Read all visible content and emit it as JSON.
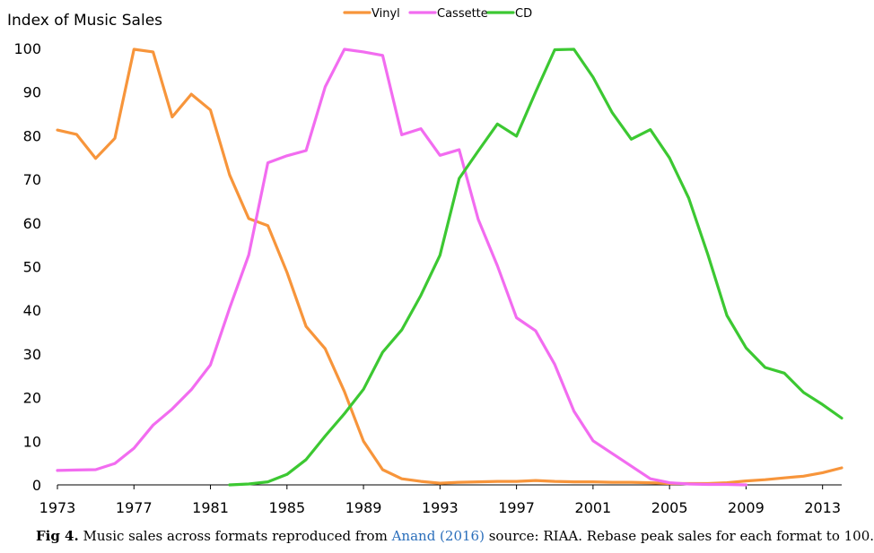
{
  "chart_data": {
    "type": "line",
    "ylabel": "Index of Music Sales",
    "ylim": [
      0,
      100
    ],
    "yticks": [
      0,
      10,
      20,
      30,
      40,
      50,
      60,
      70,
      80,
      90,
      100
    ],
    "xlim": [
      1973,
      2014
    ],
    "xticks": [
      1973,
      1977,
      1981,
      1985,
      1989,
      1993,
      1997,
      2001,
      2005,
      2009,
      2013
    ],
    "legend_position": "top-center",
    "grid": false,
    "series": [
      {
        "name": "Vinyl",
        "color": "#f7953b",
        "x": [
          1973,
          1974,
          1975,
          1976,
          1977,
          1978,
          1979,
          1980,
          1981,
          1982,
          1983,
          1984,
          1985,
          1986,
          1987,
          1988,
          1989,
          1990,
          1991,
          1992,
          1993,
          1994,
          1995,
          1996,
          1997,
          1998,
          1999,
          2000,
          2001,
          2002,
          2003,
          2004,
          2005,
          2006,
          2007,
          2008,
          2009,
          2010,
          2011,
          2012,
          2013,
          2014
        ],
        "y": [
          81.3,
          80.3,
          74.8,
          79.4,
          99.8,
          99.2,
          84.3,
          89.5,
          85.9,
          71,
          61,
          59.4,
          48.7,
          36.3,
          31.2,
          21.4,
          10,
          3.5,
          1.4,
          0.8,
          0.4,
          0.6,
          0.7,
          0.8,
          0.8,
          1,
          0.8,
          0.7,
          0.7,
          0.6,
          0.6,
          0.5,
          0.3,
          0.3,
          0.3,
          0.5,
          0.9,
          1.2,
          1.6,
          2,
          2.8,
          3.9
        ]
      },
      {
        "name": "Cassette",
        "color": "#f26cf0",
        "x": [
          1973,
          1974,
          1975,
          1976,
          1977,
          1978,
          1979,
          1980,
          1981,
          1982,
          1983,
          1984,
          1985,
          1986,
          1987,
          1988,
          1989,
          1990,
          1991,
          1992,
          1993,
          1994,
          1995,
          1996,
          1997,
          1998,
          1999,
          2000,
          2001,
          2002,
          2003,
          2004,
          2005,
          2006,
          2007,
          2008,
          2009
        ],
        "y": [
          3.3,
          3.4,
          3.5,
          4.9,
          8.4,
          13.7,
          17.4,
          21.8,
          27.5,
          40.5,
          52.7,
          73.8,
          75.4,
          76.6,
          91.2,
          99.8,
          99.2,
          98.4,
          80.2,
          81.6,
          75.5,
          76.8,
          60.8,
          50.2,
          38.3,
          35.3,
          27.6,
          16.9,
          10.1,
          7.2,
          4.3,
          1.4,
          0.5,
          0.2,
          0.1,
          0.1,
          0
        ]
      },
      {
        "name": "CD",
        "color": "#3cc832",
        "x": [
          1982,
          1983,
          1984,
          1985,
          1986,
          1987,
          1988,
          1989,
          1990,
          1991,
          1992,
          1993,
          1994,
          1995,
          1996,
          1997,
          1998,
          1999,
          2000,
          2001,
          2002,
          2003,
          2004,
          2005,
          2006,
          2007,
          2008,
          2009,
          2010,
          2011,
          2012,
          2013,
          2014
        ],
        "y": [
          0,
          0.2,
          0.7,
          2.4,
          5.8,
          11.2,
          16.3,
          21.9,
          30.4,
          35.5,
          43.4,
          52.6,
          70.2,
          76.5,
          82.7,
          79.9,
          90,
          99.7,
          99.8,
          93.4,
          85.3,
          79.2,
          81.4,
          74.9,
          65.7,
          52.8,
          38.8,
          31.4,
          26.9,
          25.6,
          21.2,
          18.4,
          15.3
        ]
      }
    ]
  },
  "caption": {
    "fig_label": "Fig 4.",
    "text_before": " Music sales across formats reproduced from ",
    "reference": "Anand (2016)",
    "text_after": " source: RIAA. Rebase peak sales for each format to 100."
  }
}
